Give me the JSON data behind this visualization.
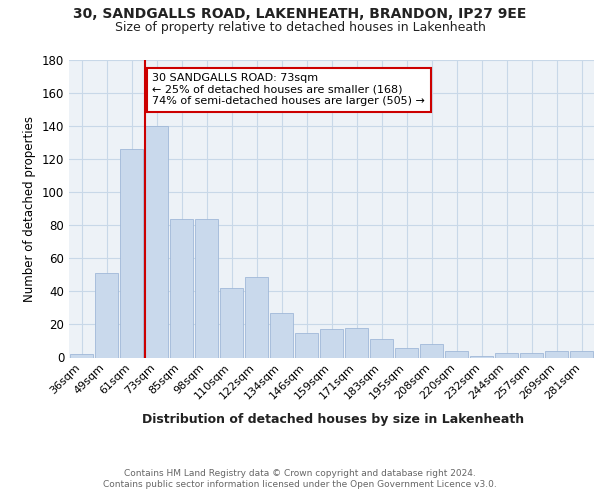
{
  "title": "30, SANDGALLS ROAD, LAKENHEATH, BRANDON, IP27 9EE",
  "subtitle": "Size of property relative to detached houses in Lakenheath",
  "xlabel": "Distribution of detached houses by size in Lakenheath",
  "ylabel": "Number of detached properties",
  "categories": [
    "36sqm",
    "49sqm",
    "61sqm",
    "73sqm",
    "85sqm",
    "98sqm",
    "110sqm",
    "122sqm",
    "134sqm",
    "146sqm",
    "159sqm",
    "171sqm",
    "183sqm",
    "195sqm",
    "208sqm",
    "220sqm",
    "232sqm",
    "244sqm",
    "257sqm",
    "269sqm",
    "281sqm"
  ],
  "values": [
    2,
    51,
    126,
    140,
    84,
    84,
    42,
    49,
    27,
    15,
    17,
    18,
    11,
    6,
    8,
    4,
    1,
    3,
    3,
    4,
    4
  ],
  "bar_color": "#c9d9ec",
  "bar_edge_color": "#a0b8d8",
  "red_line_index": 3,
  "annotation_line1": "30 SANDGALLS ROAD: 73sqm",
  "annotation_line2": "← 25% of detached houses are smaller (168)",
  "annotation_line3": "74% of semi-detached houses are larger (505) →",
  "annotation_box_facecolor": "#ffffff",
  "annotation_box_edgecolor": "#cc0000",
  "grid_color": "#c8d8e8",
  "background_color": "#edf2f7",
  "footer_line1": "Contains HM Land Registry data © Crown copyright and database right 2024.",
  "footer_line2": "Contains public sector information licensed under the Open Government Licence v3.0.",
  "ylim": [
    0,
    180
  ],
  "yticks": [
    0,
    20,
    40,
    60,
    80,
    100,
    120,
    140,
    160,
    180
  ]
}
